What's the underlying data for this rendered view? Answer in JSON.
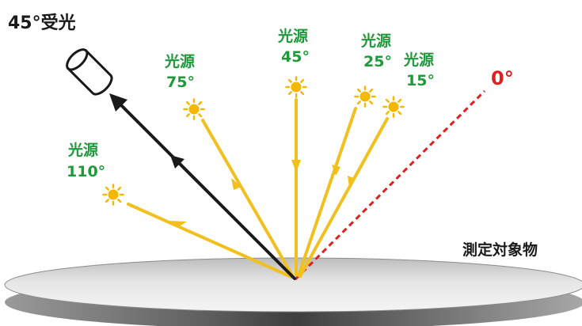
{
  "colors": {
    "light_ray": "#f2c01e",
    "light_glow": "#f5b800",
    "reflected_ray": "#1a1a1a",
    "specular_line": "#e02020",
    "label_green": "#1f9a3a",
    "label_red": "#e02020",
    "label_dark": "#1a1a1a",
    "surface_top_edge": "#9a9a9a",
    "surface_mid": "#d8d8d8",
    "surface_shadow": "#6e6e6e"
  },
  "receiver": {
    "label": "45°受光",
    "icon": "receiver-cylinder-icon"
  },
  "specular": {
    "label": "0°"
  },
  "sample": {
    "label": "測定対象物"
  },
  "sources": [
    {
      "id": "110",
      "line1": "光源",
      "line2": "110°"
    },
    {
      "id": "75",
      "line1": "光源",
      "line2": "75°"
    },
    {
      "id": "45",
      "line1": "光源",
      "line2": "45°"
    },
    {
      "id": "25",
      "line1": "光源",
      "line2": "25°"
    },
    {
      "id": "15",
      "line1": "光源",
      "line2": "15°"
    }
  ]
}
